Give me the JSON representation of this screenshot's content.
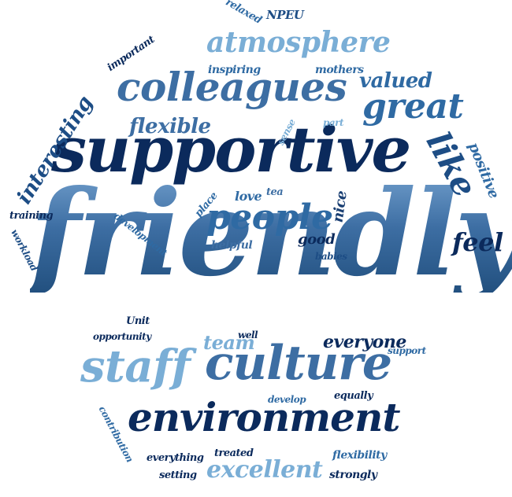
{
  "words": [
    {
      "key": "friendly",
      "text": "friendly"
    },
    {
      "key": "supportive",
      "text": "supportive"
    },
    {
      "key": "colleagues",
      "text": "colleagues"
    },
    {
      "key": "atmosphere",
      "text": "atmosphere"
    },
    {
      "key": "culture",
      "text": "culture"
    },
    {
      "key": "staff",
      "text": "staff"
    },
    {
      "key": "environment",
      "text": "environment"
    },
    {
      "key": "people",
      "text": "people"
    },
    {
      "key": "great",
      "text": "great"
    },
    {
      "key": "like",
      "text": "like"
    },
    {
      "key": "interesting",
      "text": "interesting"
    },
    {
      "key": "flexible",
      "text": "flexible"
    },
    {
      "key": "valued",
      "text": "valued"
    },
    {
      "key": "excellent",
      "text": "excellent"
    },
    {
      "key": "everyone",
      "text": "everyone"
    },
    {
      "key": "team",
      "text": "team"
    },
    {
      "key": "feel",
      "text": "feel"
    },
    {
      "key": "positive",
      "text": "positive"
    },
    {
      "key": "relaxed",
      "text": "relaxed"
    },
    {
      "key": "npeu",
      "text": "NPEU"
    },
    {
      "key": "important",
      "text": "important"
    },
    {
      "key": "inspiring",
      "text": "inspiring"
    },
    {
      "key": "mothers",
      "text": "mothers"
    },
    {
      "key": "sense",
      "text": "sense"
    },
    {
      "key": "part",
      "text": "part"
    },
    {
      "key": "love",
      "text": "love"
    },
    {
      "key": "tea",
      "text": "tea"
    },
    {
      "key": "place",
      "text": "place"
    },
    {
      "key": "nice",
      "text": "nice"
    },
    {
      "key": "good",
      "text": "good"
    },
    {
      "key": "babies",
      "text": "babies"
    },
    {
      "key": "helpful",
      "text": "helpful"
    },
    {
      "key": "training",
      "text": "training"
    },
    {
      "key": "workload",
      "text": "workload"
    },
    {
      "key": "development",
      "text": "development"
    },
    {
      "key": "unit",
      "text": "Unit"
    },
    {
      "key": "well",
      "text": "well"
    },
    {
      "key": "opportunity",
      "text": "opportunity"
    },
    {
      "key": "support",
      "text": "support"
    },
    {
      "key": "develop",
      "text": "develop"
    },
    {
      "key": "equally",
      "text": "equally"
    },
    {
      "key": "contribution",
      "text": "contribution"
    },
    {
      "key": "everything",
      "text": "everything"
    },
    {
      "key": "treated",
      "text": "treated"
    },
    {
      "key": "flexibility",
      "text": "flexibility"
    },
    {
      "key": "setting",
      "text": "setting"
    },
    {
      "key": "strongly",
      "text": "strongly"
    }
  ],
  "colors": {
    "darkest": "#0b2a5c",
    "dark": "#1d4d85",
    "mid": "#2f6aa3",
    "steel": "#3d6ea3",
    "light": "#7aaed6"
  }
}
